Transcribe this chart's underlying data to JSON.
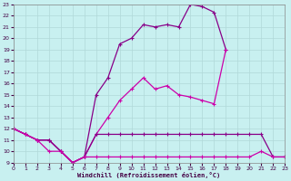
{
  "xlabel": "Windchill (Refroidissement éolien,°C)",
  "bg_color": "#c8f0f0",
  "grid_color": "#b0d8d8",
  "xlim": [
    0,
    23
  ],
  "ylim": [
    9,
    23
  ],
  "xticks": [
    0,
    1,
    2,
    3,
    4,
    5,
    6,
    7,
    8,
    9,
    10,
    11,
    12,
    13,
    14,
    15,
    16,
    17,
    18,
    19,
    20,
    21,
    22,
    23
  ],
  "yticks": [
    9,
    10,
    11,
    12,
    13,
    14,
    15,
    16,
    17,
    18,
    19,
    20,
    21,
    22,
    23
  ],
  "line_upper_x": [
    0,
    1,
    2,
    3,
    4,
    5,
    6,
    7,
    8,
    9,
    10,
    11,
    12,
    13,
    14,
    15,
    16,
    17,
    18
  ],
  "line_upper_y": [
    12,
    11.5,
    11,
    11,
    10,
    9,
    9.5,
    15,
    16.5,
    19.5,
    20,
    21.2,
    21,
    21.2,
    21,
    23,
    22.8,
    22.3,
    19
  ],
  "line_mid_x": [
    0,
    1,
    2,
    3,
    4,
    5,
    6,
    7,
    8,
    9,
    10,
    11,
    12,
    13,
    14,
    15,
    16,
    17,
    18
  ],
  "line_mid_y": [
    12,
    11.5,
    11,
    11,
    10,
    9,
    9.5,
    11.5,
    13,
    14.5,
    15.5,
    16.5,
    15.5,
    15.8,
    15,
    14.8,
    14.5,
    14.2,
    19
  ],
  "line_low_x": [
    0,
    1,
    2,
    3,
    4,
    5,
    6,
    7,
    8,
    9,
    10,
    11,
    12,
    13,
    14,
    15,
    16,
    17,
    18,
    19,
    20,
    21,
    22,
    23
  ],
  "line_low_y": [
    12,
    11.5,
    11,
    11,
    10,
    9,
    9.5,
    11.5,
    11.5,
    11.5,
    11.5,
    11.5,
    11.5,
    11.5,
    11.5,
    11.5,
    11.5,
    11.5,
    11.5,
    11.5,
    11.5,
    11.5,
    9.5,
    9.5
  ],
  "line_bot_x": [
    0,
    1,
    2,
    3,
    4,
    5,
    6,
    7,
    8,
    9,
    10,
    11,
    12,
    13,
    14,
    15,
    16,
    17,
    18,
    19,
    20,
    21,
    22,
    23
  ],
  "line_bot_y": [
    12,
    11.5,
    11,
    10,
    10,
    9,
    9.5,
    9.5,
    9.5,
    9.5,
    9.5,
    9.5,
    9.5,
    9.5,
    9.5,
    9.5,
    9.5,
    9.5,
    9.5,
    9.5,
    9.5,
    10,
    9.5,
    9.5
  ],
  "line_color_dark": "#880088",
  "line_color_bright": "#cc00aa"
}
